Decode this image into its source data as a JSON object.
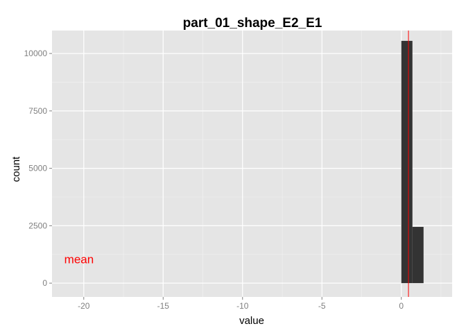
{
  "chart_data": {
    "type": "bar",
    "title": "part_01_shape_E2_E1",
    "xlabel": "value",
    "ylabel": "count",
    "xlim": [
      -22.0,
      3.2
    ],
    "ylim": [
      -600,
      11000
    ],
    "x_ticks": [
      -20,
      -15,
      -10,
      -5,
      0
    ],
    "x_tick_labels": [
      "-20",
      "-15",
      "-10",
      "-5",
      "0"
    ],
    "x_minor_ticks": [
      -17.5,
      -12.5,
      -7.5,
      -2.5,
      2.5
    ],
    "y_ticks": [
      0,
      2500,
      5000,
      7500,
      10000
    ],
    "y_tick_labels": [
      "0",
      "2500",
      "5000",
      "7500",
      "10000"
    ],
    "y_minor_ticks": [
      1250,
      3750,
      6250,
      8750
    ],
    "grid": true,
    "bins": [
      {
        "x0": 0.0,
        "x1": 0.7,
        "count": 10550
      },
      {
        "x0": 0.7,
        "x1": 1.4,
        "count": 2450
      }
    ],
    "bar_color": "#333333",
    "panel_color": "#e5e5e5",
    "grid_color": "#ffffff",
    "mean": {
      "value": 0.45,
      "color": "#ff0000"
    },
    "annotation": {
      "text": "mean",
      "x": -20.3,
      "y": 1050,
      "color": "#ff0000"
    }
  }
}
